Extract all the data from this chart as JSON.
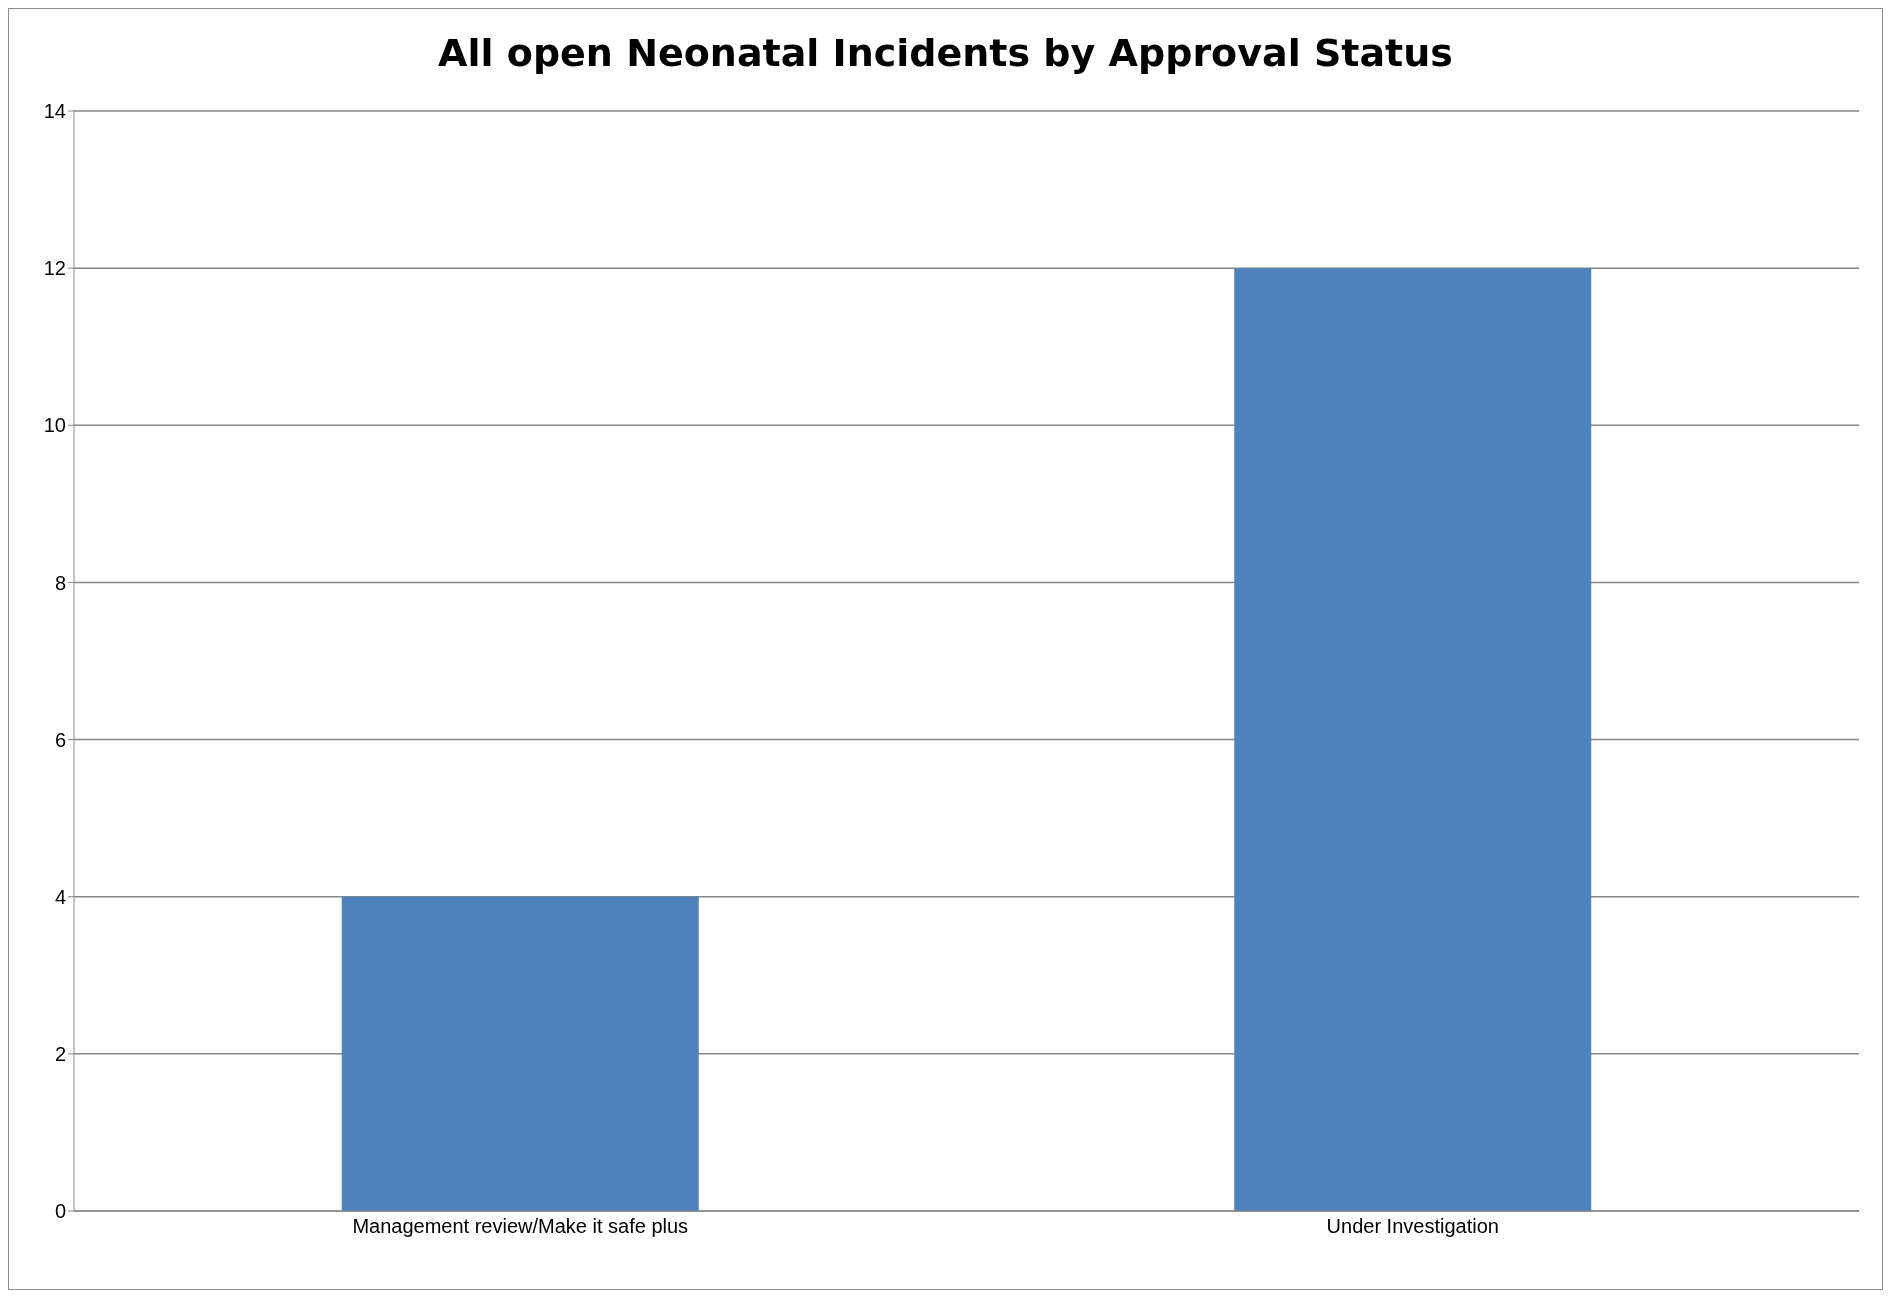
{
  "chart_data": {
    "type": "bar",
    "title": "All open Neonatal Incidents by Approval Status",
    "categories": [
      "Management review/Make it safe plus",
      "Under Investigation"
    ],
    "values": [
      4,
      12
    ],
    "color": "#4f81bd",
    "ylim": [
      0,
      14
    ],
    "yticks": [
      0,
      2,
      4,
      6,
      8,
      10,
      12,
      14
    ],
    "grid": "y",
    "legend": false
  }
}
